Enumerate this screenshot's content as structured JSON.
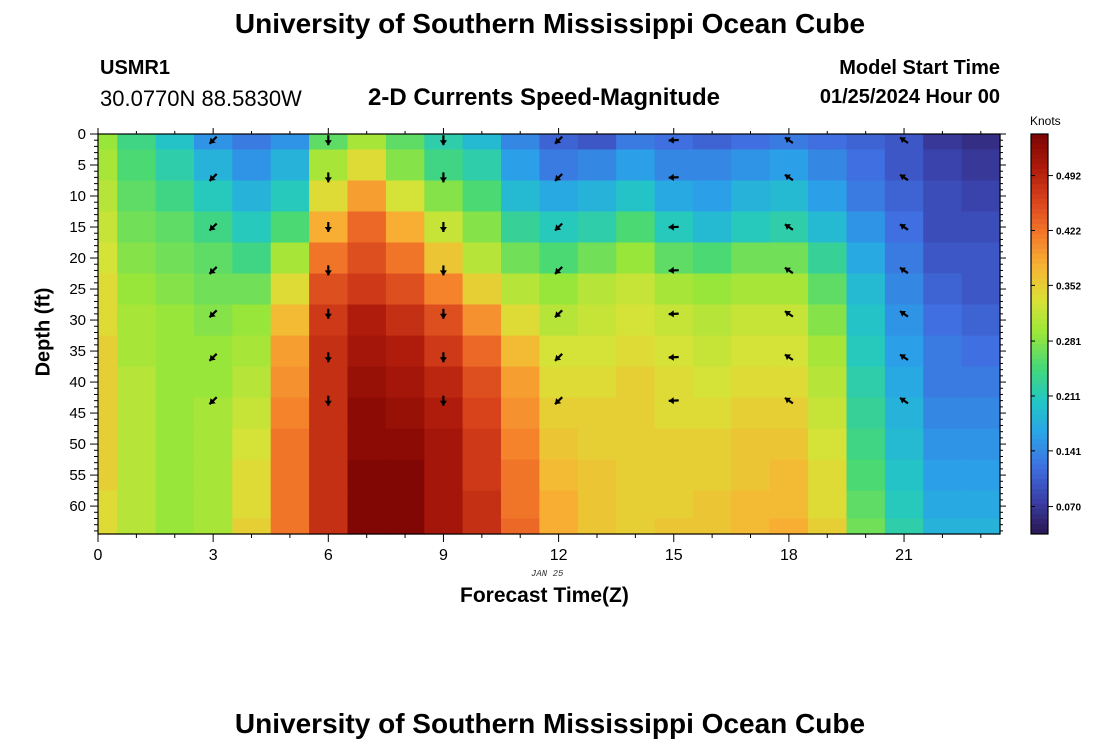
{
  "page": {
    "title_top": "University of Southern Mississippi Ocean Cube",
    "title_bottom": "University of Southern Mississippi Ocean Cube",
    "station_id": "USMR1",
    "coordinates": "30.0770N  88.5830W",
    "subtitle": "2-D Currents Speed-Magnitude",
    "model_start_label": "Model Start Time",
    "model_start_value": "01/25/2024 Hour 00",
    "date_label": "JAN 25"
  },
  "colors": {
    "arrow": "#000000",
    "frame": "#000000",
    "colormap": [
      "#2b1650",
      "#3a3fa8",
      "#3f6fe0",
      "#2aa3e8",
      "#22c7c4",
      "#46d878",
      "#98e63a",
      "#d9e237",
      "#f7b533",
      "#f3782a",
      "#d8431c",
      "#ad1a0a",
      "#7a0403"
    ]
  },
  "chart_data": {
    "type": "heatmap",
    "title": "2-D Currents Speed-Magnitude",
    "xlabel": "Forecast Time(Z)",
    "ylabel": "Depth (ft)",
    "colorbar_label": "Knots",
    "xlim": [
      0,
      23.5
    ],
    "ylim": [
      0,
      64.5
    ],
    "x_ticks": [
      0,
      3,
      6,
      9,
      12,
      15,
      18,
      21
    ],
    "y_ticks": [
      0,
      5,
      10,
      15,
      20,
      25,
      30,
      35,
      40,
      45,
      50,
      55,
      60
    ],
    "colorbar_ticks": [
      "0.070",
      "0.141",
      "0.211",
      "0.281",
      "0.352",
      "0.422",
      "0.492"
    ],
    "colorbar_range": [
      0.035,
      0.545
    ],
    "depths": [
      0,
      5,
      10,
      15,
      20,
      25,
      30,
      35,
      40,
      45,
      50,
      55,
      60,
      64
    ],
    "hours": [
      0,
      1,
      2,
      3,
      4,
      5,
      6,
      7,
      8,
      9,
      10,
      11,
      12,
      13,
      14,
      15,
      16,
      17,
      18,
      19,
      20,
      21,
      22,
      23
    ],
    "speed_knots": [
      [
        0.29,
        0.24,
        0.2,
        0.15,
        0.13,
        0.15,
        0.26,
        0.3,
        0.26,
        0.22,
        0.19,
        0.14,
        0.11,
        0.1,
        0.13,
        0.12,
        0.11,
        0.12,
        0.13,
        0.12,
        0.11,
        0.1,
        0.07,
        0.06
      ],
      [
        0.3,
        0.25,
        0.22,
        0.18,
        0.15,
        0.18,
        0.3,
        0.34,
        0.28,
        0.24,
        0.22,
        0.16,
        0.13,
        0.14,
        0.16,
        0.14,
        0.14,
        0.15,
        0.16,
        0.14,
        0.12,
        0.1,
        0.08,
        0.07
      ],
      [
        0.31,
        0.26,
        0.24,
        0.21,
        0.18,
        0.21,
        0.34,
        0.39,
        0.33,
        0.28,
        0.25,
        0.19,
        0.17,
        0.18,
        0.2,
        0.17,
        0.16,
        0.18,
        0.19,
        0.16,
        0.13,
        0.11,
        0.09,
        0.08
      ],
      [
        0.32,
        0.27,
        0.26,
        0.24,
        0.21,
        0.25,
        0.38,
        0.43,
        0.38,
        0.32,
        0.28,
        0.23,
        0.21,
        0.22,
        0.25,
        0.21,
        0.19,
        0.21,
        0.22,
        0.19,
        0.15,
        0.12,
        0.09,
        0.09
      ],
      [
        0.33,
        0.28,
        0.27,
        0.26,
        0.24,
        0.3,
        0.42,
        0.45,
        0.42,
        0.36,
        0.31,
        0.27,
        0.25,
        0.27,
        0.29,
        0.26,
        0.25,
        0.27,
        0.27,
        0.23,
        0.17,
        0.13,
        0.1,
        0.1
      ],
      [
        0.34,
        0.29,
        0.28,
        0.27,
        0.27,
        0.34,
        0.45,
        0.47,
        0.45,
        0.41,
        0.35,
        0.31,
        0.29,
        0.31,
        0.32,
        0.3,
        0.29,
        0.3,
        0.3,
        0.26,
        0.19,
        0.14,
        0.11,
        0.1
      ],
      [
        0.34,
        0.3,
        0.29,
        0.28,
        0.29,
        0.37,
        0.47,
        0.5,
        0.48,
        0.45,
        0.4,
        0.34,
        0.31,
        0.32,
        0.33,
        0.32,
        0.31,
        0.32,
        0.32,
        0.28,
        0.2,
        0.15,
        0.12,
        0.11
      ],
      [
        0.35,
        0.3,
        0.29,
        0.29,
        0.3,
        0.39,
        0.48,
        0.51,
        0.5,
        0.47,
        0.43,
        0.37,
        0.33,
        0.33,
        0.34,
        0.33,
        0.32,
        0.33,
        0.33,
        0.3,
        0.21,
        0.16,
        0.13,
        0.12
      ],
      [
        0.35,
        0.31,
        0.29,
        0.29,
        0.31,
        0.4,
        0.48,
        0.52,
        0.51,
        0.49,
        0.45,
        0.39,
        0.34,
        0.34,
        0.35,
        0.34,
        0.33,
        0.34,
        0.34,
        0.31,
        0.22,
        0.17,
        0.13,
        0.13
      ],
      [
        0.35,
        0.31,
        0.29,
        0.3,
        0.32,
        0.41,
        0.48,
        0.53,
        0.52,
        0.5,
        0.46,
        0.4,
        0.35,
        0.35,
        0.35,
        0.34,
        0.34,
        0.35,
        0.35,
        0.32,
        0.23,
        0.18,
        0.14,
        0.14
      ],
      [
        0.35,
        0.31,
        0.29,
        0.3,
        0.33,
        0.42,
        0.48,
        0.53,
        0.53,
        0.51,
        0.47,
        0.41,
        0.36,
        0.35,
        0.35,
        0.35,
        0.35,
        0.36,
        0.36,
        0.33,
        0.24,
        0.19,
        0.15,
        0.15
      ],
      [
        0.35,
        0.31,
        0.29,
        0.3,
        0.34,
        0.42,
        0.48,
        0.54,
        0.54,
        0.51,
        0.47,
        0.42,
        0.37,
        0.36,
        0.35,
        0.35,
        0.35,
        0.36,
        0.37,
        0.34,
        0.25,
        0.2,
        0.16,
        0.16
      ],
      [
        0.34,
        0.31,
        0.29,
        0.3,
        0.34,
        0.42,
        0.48,
        0.54,
        0.54,
        0.51,
        0.48,
        0.42,
        0.38,
        0.36,
        0.35,
        0.35,
        0.36,
        0.37,
        0.37,
        0.34,
        0.26,
        0.21,
        0.17,
        0.17
      ],
      [
        0.34,
        0.31,
        0.29,
        0.3,
        0.35,
        0.42,
        0.48,
        0.54,
        0.54,
        0.51,
        0.48,
        0.43,
        0.38,
        0.36,
        0.35,
        0.36,
        0.36,
        0.37,
        0.38,
        0.35,
        0.27,
        0.22,
        0.18,
        0.18
      ]
    ],
    "vectors": [
      {
        "hour": 3,
        "dir": "sw"
      },
      {
        "hour": 6,
        "dir": "s"
      },
      {
        "hour": 9,
        "dir": "s"
      },
      {
        "hour": 12,
        "dir": "sw"
      },
      {
        "hour": 15,
        "dir": "w"
      },
      {
        "hour": 18,
        "dir": "nw"
      },
      {
        "hour": 21,
        "dir": "nw"
      }
    ],
    "vector_depths": [
      1,
      7,
      15,
      22,
      29,
      36,
      43
    ]
  }
}
